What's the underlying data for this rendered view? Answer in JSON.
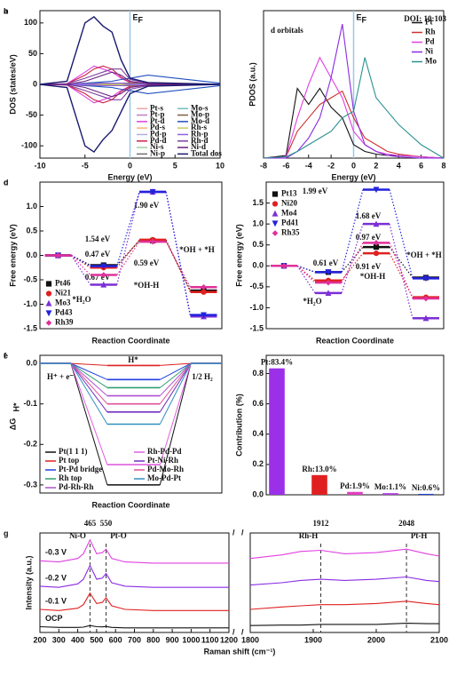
{
  "chart_data": [
    {
      "type": "line",
      "label": "a",
      "xlabel": "Energy (eV)",
      "ylabel": "DOS (states/eV)",
      "ef": "E",
      "ef_sub": "F",
      "fermi": 0,
      "xlim": [
        -10,
        10
      ],
      "xticks": [
        -10,
        -5,
        0,
        5,
        10
      ],
      "ylim": [
        -120,
        120
      ],
      "yticks": [
        -100,
        -50,
        0,
        50,
        100
      ],
      "legend": "lower right",
      "legend_columns": 2,
      "x": [
        -10,
        -7,
        -5,
        -4,
        -3,
        -2,
        -1,
        0,
        2,
        10
      ],
      "series": [
        {
          "name": "Pt-s",
          "color": "#f4a6a6",
          "values": [
            0,
            0,
            1,
            1,
            1,
            1,
            1,
            0,
            0,
            0
          ],
          "values_down": [
            0,
            0,
            -1,
            -1,
            -1,
            -1,
            -1,
            0,
            0,
            0
          ]
        },
        {
          "name": "Pt-p",
          "color": "#c080c0",
          "values": [
            0,
            0,
            2,
            2,
            2,
            2,
            1,
            1,
            1,
            0
          ],
          "values_down": [
            0,
            0,
            -2,
            -2,
            -2,
            -2,
            -1,
            -1,
            -1,
            0
          ]
        },
        {
          "name": "Pt-d",
          "color": "#e040e0",
          "values": [
            0,
            1,
            20,
            30,
            25,
            20,
            10,
            3,
            1,
            0
          ],
          "values_down": [
            0,
            -1,
            -20,
            -30,
            -25,
            -20,
            -10,
            -3,
            -1,
            0
          ]
        },
        {
          "name": "Pd-s",
          "color": "#ffb080",
          "values": [
            0,
            0,
            1,
            1,
            1,
            1,
            1,
            1,
            0,
            0
          ],
          "values_down": [
            0,
            0,
            -1,
            -1,
            -1,
            -1,
            -1,
            -1,
            0,
            0
          ]
        },
        {
          "name": "Pd-p",
          "color": "#b0b0e0",
          "values": [
            0,
            0,
            1,
            2,
            2,
            2,
            2,
            1,
            1,
            0
          ],
          "values_down": [
            0,
            0,
            -1,
            -2,
            -2,
            -2,
            -2,
            -1,
            -1,
            0
          ]
        },
        {
          "name": "Pd-d",
          "color": "#cc2244",
          "values": [
            0,
            1,
            15,
            25,
            30,
            25,
            12,
            3,
            1,
            0
          ],
          "values_down": [
            0,
            -1,
            -15,
            -25,
            -30,
            -25,
            -12,
            -3,
            -1,
            0
          ]
        },
        {
          "name": "Ni-s",
          "color": "#a0d0a0",
          "values": [
            0,
            0,
            1,
            1,
            1,
            2,
            2,
            1,
            0,
            0
          ],
          "values_down": [
            0,
            0,
            -1,
            -1,
            -1,
            -2,
            -2,
            -1,
            0,
            0
          ]
        },
        {
          "name": "Ni-p",
          "color": "#707070",
          "values": [
            0,
            0,
            1,
            1,
            2,
            2,
            2,
            1,
            1,
            0
          ],
          "values_down": [
            0,
            0,
            -1,
            -1,
            -2,
            -2,
            -2,
            -1,
            -1,
            0
          ]
        },
        {
          "name": "Mo-s",
          "color": "#70c0c0",
          "values": [
            0,
            0,
            0,
            1,
            1,
            1,
            1,
            1,
            1,
            0
          ],
          "values_down": [
            0,
            0,
            0,
            -1,
            -1,
            -1,
            -1,
            -1,
            -1,
            0
          ]
        },
        {
          "name": "Mo-p",
          "color": "#806040",
          "values": [
            0,
            0,
            1,
            1,
            1,
            1,
            2,
            2,
            2,
            0
          ],
          "values_down": [
            0,
            0,
            -1,
            -1,
            -1,
            -1,
            -2,
            -2,
            -2,
            0
          ]
        },
        {
          "name": "Mo-d",
          "color": "#2050c0",
          "values": [
            0,
            0,
            2,
            3,
            4,
            5,
            8,
            10,
            15,
            2
          ],
          "values_down": [
            0,
            0,
            -2,
            -3,
            -4,
            -5,
            -8,
            -10,
            -15,
            -2
          ]
        },
        {
          "name": "Rh-s",
          "color": "#c8c860",
          "values": [
            0,
            0,
            1,
            1,
            1,
            1,
            1,
            1,
            0,
            0
          ],
          "values_down": [
            0,
            0,
            -1,
            -1,
            -1,
            -1,
            -1,
            -1,
            0,
            0
          ]
        },
        {
          "name": "Rh-p",
          "color": "#9060e0",
          "values": [
            0,
            0,
            1,
            1,
            2,
            2,
            2,
            1,
            1,
            0
          ],
          "values_down": [
            0,
            0,
            -1,
            -1,
            -2,
            -2,
            -2,
            -1,
            -1,
            0
          ]
        },
        {
          "name": "Rh-d",
          "color": "#8040a0",
          "values": [
            0,
            1,
            10,
            15,
            20,
            25,
            25,
            8,
            2,
            0
          ],
          "values_down": [
            0,
            -1,
            -10,
            -15,
            -20,
            -25,
            -25,
            -8,
            -2,
            0
          ]
        },
        {
          "name": "Ni-d",
          "color": "#6a2080",
          "values": [
            0,
            0,
            5,
            10,
            15,
            20,
            15,
            5,
            1,
            0
          ],
          "values_down": [
            0,
            0,
            -5,
            -10,
            -15,
            -20,
            -15,
            -5,
            -1,
            0
          ]
        },
        {
          "name": "Total dos",
          "color": "#1a1a6e",
          "values": [
            0,
            5,
            100,
            110,
            95,
            85,
            40,
            10,
            3,
            0
          ],
          "values_down": [
            0,
            -5,
            -100,
            -110,
            -90,
            -75,
            -45,
            -15,
            -3,
            0
          ]
        }
      ]
    },
    {
      "type": "line",
      "label": "b",
      "xlabel": "Energy (eV)",
      "ylabel": "PDOS (a.u.)",
      "ef": "E",
      "ef_sub": "F",
      "fermi": 0,
      "annotations": [
        "d orbitals",
        "DOI: 10:103"
      ],
      "xlim": [
        -8,
        8
      ],
      "xticks": [
        -8,
        -6,
        -4,
        -2,
        0,
        2,
        4,
        6,
        8
      ],
      "ylim": [
        0,
        1.1
      ],
      "legend": "upper right",
      "legend_columns": 1,
      "x": [
        -8,
        -6,
        -5,
        -4,
        -3,
        -2,
        -1,
        0,
        1,
        2,
        3,
        4,
        6,
        8
      ],
      "series": [
        {
          "name": "Pt",
          "color": "#111111",
          "values": [
            0,
            0.02,
            0.52,
            0.4,
            0.52,
            0.38,
            0.3,
            0.1,
            0.05,
            0.03,
            0.02,
            0.02,
            0.01,
            0
          ]
        },
        {
          "name": "Rh",
          "color": "#d03030",
          "values": [
            0,
            0.01,
            0.2,
            0.3,
            0.4,
            0.45,
            0.5,
            0.3,
            0.15,
            0.1,
            0.05,
            0.03,
            0.01,
            0
          ]
        },
        {
          "name": "Pd",
          "color": "#e040e0",
          "values": [
            0,
            0.01,
            0.3,
            0.55,
            0.75,
            0.6,
            0.45,
            0.2,
            0.1,
            0.05,
            0.03,
            0.02,
            0.01,
            0
          ]
        },
        {
          "name": "Ni",
          "color": "#8a2be2",
          "values": [
            0,
            0,
            0.05,
            0.15,
            0.3,
            0.6,
            1.0,
            0.35,
            0.1,
            0.05,
            0.02,
            0.01,
            0,
            0
          ]
        },
        {
          "name": "Mo",
          "color": "#2a9090",
          "values": [
            0,
            0.01,
            0.05,
            0.1,
            0.15,
            0.2,
            0.3,
            0.35,
            0.75,
            0.45,
            0.35,
            0.25,
            0.1,
            0
          ]
        }
      ]
    },
    {
      "type": "step",
      "label": "c",
      "xlabel": "Reaction Coordinate",
      "ylabel": "Free energy (eV)",
      "annotations": [
        "1.90 eV",
        "1.54 eV",
        "0.47 eV",
        "0.59 eV",
        "0.67 eV",
        "*H₂O",
        "*OH-H",
        "*OH + *H"
      ],
      "ylim": [
        -1.5,
        1.5
      ],
      "yticks": [
        -1.5,
        {
          "value": -1,
          "label": "-1.0"
        },
        -0.5,
        {
          "value": 0,
          "label": "0.0"
        },
        0.5,
        {
          "value": 1,
          "label": "1.0"
        }
      ],
      "legend": "lower left",
      "legend_columns": 1,
      "series": [
        {
          "name": "Pt46",
          "color": "#111111",
          "marker": "square",
          "values": [
            0,
            -0.2,
            0.3,
            -0.72
          ]
        },
        {
          "name": "Ni21",
          "color": "#e02020",
          "marker": "circle",
          "values": [
            0,
            -0.25,
            0.32,
            -0.75
          ]
        },
        {
          "name": "Mo3",
          "color": "#7b2fd4",
          "marker": "triangle-up",
          "values": [
            0,
            -0.6,
            1.3,
            -1.25
          ]
        },
        {
          "name": "Pd43",
          "color": "#2222dd",
          "marker": "triangle-down",
          "values": [
            0,
            -0.22,
            1.3,
            -1.22
          ]
        },
        {
          "name": "Rh39",
          "color": "#e0309a",
          "marker": "diamond",
          "values": [
            0,
            -0.4,
            0.28,
            -0.65
          ]
        }
      ]
    },
    {
      "type": "step",
      "label": "d",
      "xlabel": "Reaction Coordinate",
      "ylabel": "Free energy (eV)",
      "annotations": [
        "1.99 eV",
        "1.68 eV",
        "0.97 eV",
        "0.61 eV",
        "0.91 eV",
        "*H₂O",
        "*OH-H",
        "*OH + *H"
      ],
      "ylim": [
        -1.5,
        2.0
      ],
      "yticks": [
        -1.5,
        {
          "value": -1,
          "label": "-1.0"
        },
        -0.5,
        {
          "value": 0,
          "label": "0.0"
        },
        0.5,
        {
          "value": 1,
          "label": "1.0"
        },
        1.5
      ],
      "legend": "upper left",
      "legend_columns": 1,
      "series": [
        {
          "name": "Pt13",
          "color": "#111111",
          "marker": "square",
          "values": [
            0,
            -0.15,
            0.45,
            -0.28
          ]
        },
        {
          "name": "Ni20",
          "color": "#e02020",
          "marker": "circle",
          "values": [
            0,
            -0.35,
            0.3,
            -0.75
          ]
        },
        {
          "name": "Mo4",
          "color": "#7b2fd4",
          "marker": "triangle-up",
          "values": [
            0,
            -0.65,
            1.0,
            -1.25
          ]
        },
        {
          "name": "Pd41",
          "color": "#2222dd",
          "marker": "triangle-down",
          "values": [
            0,
            -0.15,
            1.82,
            -0.3
          ]
        },
        {
          "name": "Rh35",
          "color": "#e0309a",
          "marker": "diamond",
          "values": [
            0,
            -0.4,
            0.55,
            -0.78
          ]
        }
      ]
    },
    {
      "type": "level",
      "label": "e",
      "xlabel": "Reaction Coordinate",
      "ylabel": "ΔG",
      "ylabel_sub": "H*",
      "annotations": [
        "H*",
        "H⁺ + e⁻",
        "1/2 H₂"
      ],
      "ylim": [
        -0.32,
        0.02
      ],
      "yticks": [
        {
          "value": 0,
          "label": "0.0"
        },
        -0.1,
        -0.2,
        -0.3
      ],
      "legend": "lower left",
      "legend_columns": 2,
      "series": [
        {
          "name": "Pt(1 1 1)",
          "color": "#111111",
          "values": [
            0,
            -0.3,
            0
          ]
        },
        {
          "name": "Pt top",
          "color": "#e02020",
          "values": [
            0,
            -0.005,
            0
          ]
        },
        {
          "name": "Pt-Pd bridge",
          "color": "#2040e0",
          "values": [
            0,
            -0.04,
            0
          ]
        },
        {
          "name": "Rh top",
          "color": "#30a070",
          "values": [
            0,
            -0.06,
            0
          ]
        },
        {
          "name": "Pd-Rh-Rh",
          "color": "#b050d0",
          "values": [
            0,
            -0.08,
            0
          ]
        },
        {
          "name": "Rh-Pd-Pd",
          "color": "#e060e0",
          "values": [
            0,
            -0.25,
            0
          ]
        },
        {
          "name": "Pt-Ni-Rh",
          "color": "#7030c0",
          "values": [
            0,
            -0.12,
            0
          ]
        },
        {
          "name": "Pd-Mo-Rh",
          "color": "#e0509a",
          "values": [
            0,
            -0.1,
            0
          ]
        },
        {
          "name": "Mo-Pd-Pt",
          "color": "#3090c0",
          "values": [
            0,
            -0.15,
            0
          ]
        }
      ]
    },
    {
      "type": "bar",
      "label": "f",
      "ylabel": "Contribution (%)",
      "values": [
        0.834,
        0.13,
        0.019,
        0.011,
        0.006
      ],
      "value_labels": [
        "Pt:83.4%",
        "Rh:13.0%",
        "Pd:1.9%",
        "Mo:1.1%",
        "Ni:0.6%"
      ],
      "colors": [
        "#9b30e8",
        "#e02020",
        "#e040c0",
        "#b040e0",
        "#2040e0"
      ],
      "ylim": [
        0,
        0.92
      ],
      "yticks": [
        {
          "value": 0,
          "label": "0.0"
        },
        0.2,
        0.4,
        0.6,
        0.8
      ]
    },
    {
      "type": "line",
      "label": "g",
      "xlabel": "Raman shift (cm⁻¹)",
      "ylabel": "Intensity (a.u.)",
      "xlim": [
        200,
        2100
      ],
      "xbreak": [
        1200,
        1800
      ],
      "xticks": [
        200,
        300,
        400,
        500,
        600,
        700,
        800,
        900,
        1000,
        1100,
        1200,
        1800,
        1900,
        2000,
        2100
      ],
      "ylim": [
        -0.1,
        4.2
      ],
      "legend": "inline",
      "peaks": [
        465,
        550,
        1912,
        2048
      ],
      "peak_names": [
        "Ni-O",
        "Pt-O",
        "Rh-H",
        "Pt-H"
      ],
      "x": [
        200,
        300,
        400,
        430,
        465,
        500,
        530,
        550,
        580,
        650,
        800,
        1000,
        1200,
        1800,
        1850,
        1880,
        1912,
        1950,
        2000,
        2048,
        2080,
        2100
      ],
      "series": [
        {
          "name": "OCP",
          "color": "#111111",
          "values": [
            0.15,
            0.12,
            0.12,
            0.13,
            0.2,
            0.15,
            0.14,
            0.16,
            0.12,
            0.1,
            0.1,
            0.1,
            0.1,
            0.2,
            0.22,
            0.22,
            0.25,
            0.25,
            0.25,
            0.3,
            0.28,
            0.28
          ]
        },
        {
          "name": "-0.1 V",
          "color": "#e02020",
          "values": [
            0.9,
            0.85,
            0.95,
            1.1,
            1.6,
            1.15,
            1.2,
            1.4,
            1.05,
            0.9,
            0.85,
            0.85,
            0.85,
            0.9,
            1.0,
            1.05,
            1.1,
            1.1,
            1.15,
            1.25,
            1.15,
            1.1
          ]
        },
        {
          "name": "-0.2 V",
          "color": "#8a2be2",
          "values": [
            1.9,
            1.85,
            2.0,
            2.2,
            2.8,
            2.2,
            2.25,
            2.45,
            2.05,
            1.9,
            1.85,
            1.85,
            1.85,
            1.95,
            2.05,
            2.15,
            2.2,
            2.15,
            2.2,
            2.3,
            2.15,
            2.1
          ]
        },
        {
          "name": "-0.3 V",
          "color": "#e040e0",
          "values": [
            3.0,
            2.95,
            3.1,
            3.3,
            3.9,
            3.3,
            3.35,
            3.5,
            3.1,
            2.95,
            2.9,
            2.9,
            2.9,
            3.1,
            3.25,
            3.4,
            3.45,
            3.3,
            3.35,
            3.5,
            3.3,
            3.2
          ]
        }
      ]
    }
  ]
}
